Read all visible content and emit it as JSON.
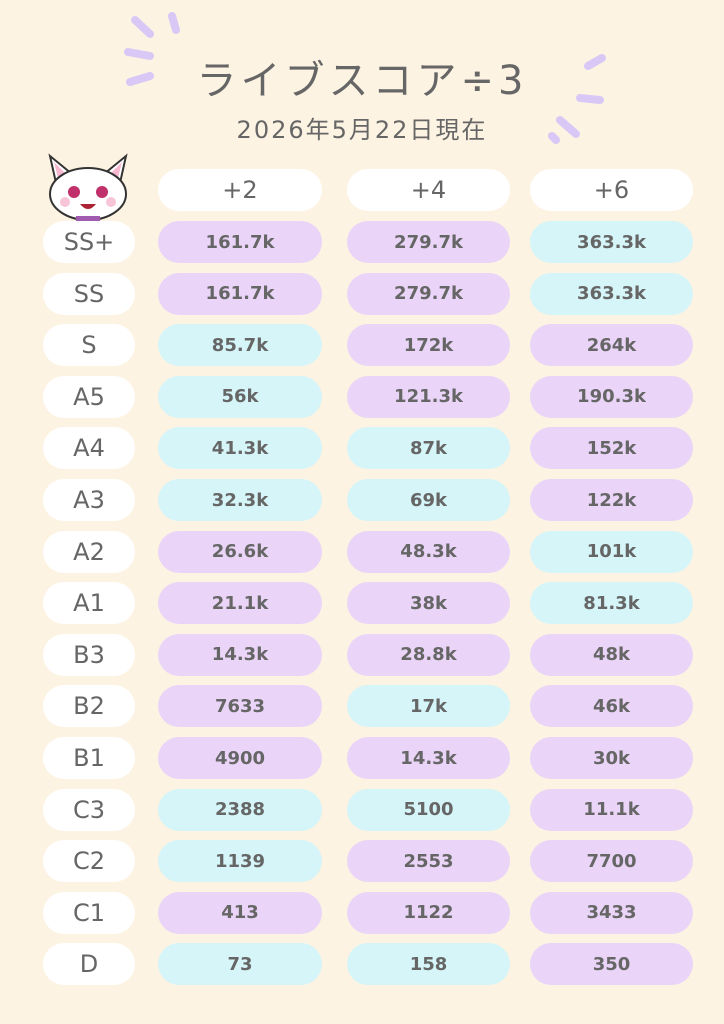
{
  "header": {
    "title": "ライブスコア÷3",
    "subtitle": "2026年5月22日現在"
  },
  "table": {
    "columns": [
      "+2",
      "+4",
      "+6"
    ],
    "rows": [
      {
        "label": "SS+",
        "cells": [
          "161.7k",
          "279.7k",
          "363.3k"
        ],
        "colors": [
          "#ead5f8",
          "#ead5f8",
          "#d5f5f8"
        ]
      },
      {
        "label": "SS",
        "cells": [
          "161.7k",
          "279.7k",
          "363.3k"
        ],
        "colors": [
          "#ead5f8",
          "#ead5f8",
          "#d5f5f8"
        ]
      },
      {
        "label": "S",
        "cells": [
          "85.7k",
          "172k",
          "264k"
        ],
        "colors": [
          "#d5f5f8",
          "#ead5f8",
          "#ead5f8"
        ]
      },
      {
        "label": "A5",
        "cells": [
          "56k",
          "121.3k",
          "190.3k"
        ],
        "colors": [
          "#d5f5f8",
          "#ead5f8",
          "#ead5f8"
        ]
      },
      {
        "label": "A4",
        "cells": [
          "41.3k",
          "87k",
          "152k"
        ],
        "colors": [
          "#d5f5f8",
          "#d5f5f8",
          "#ead5f8"
        ]
      },
      {
        "label": "A3",
        "cells": [
          "32.3k",
          "69k",
          "122k"
        ],
        "colors": [
          "#d5f5f8",
          "#d5f5f8",
          "#ead5f8"
        ]
      },
      {
        "label": "A2",
        "cells": [
          "26.6k",
          "48.3k",
          "101k"
        ],
        "colors": [
          "#ead5f8",
          "#ead5f8",
          "#d5f5f8"
        ]
      },
      {
        "label": "A1",
        "cells": [
          "21.1k",
          "38k",
          "81.3k"
        ],
        "colors": [
          "#ead5f8",
          "#ead5f8",
          "#d5f5f8"
        ]
      },
      {
        "label": "B3",
        "cells": [
          "14.3k",
          "28.8k",
          "48k"
        ],
        "colors": [
          "#ead5f8",
          "#ead5f8",
          "#ead5f8"
        ]
      },
      {
        "label": "B2",
        "cells": [
          "7633",
          "17k",
          "46k"
        ],
        "colors": [
          "#ead5f8",
          "#d5f5f8",
          "#ead5f8"
        ]
      },
      {
        "label": "B1",
        "cells": [
          "4900",
          "14.3k",
          "30k"
        ],
        "colors": [
          "#ead5f8",
          "#ead5f8",
          "#ead5f8"
        ]
      },
      {
        "label": "C3",
        "cells": [
          "2388",
          "5100",
          "11.1k"
        ],
        "colors": [
          "#d5f5f8",
          "#d5f5f8",
          "#ead5f8"
        ]
      },
      {
        "label": "C2",
        "cells": [
          "1139",
          "2553",
          "7700"
        ],
        "colors": [
          "#d5f5f8",
          "#ead5f8",
          "#ead5f8"
        ]
      },
      {
        "label": "C1",
        "cells": [
          "413",
          "1122",
          "3433"
        ],
        "colors": [
          "#ead5f8",
          "#ead5f8",
          "#ead5f8"
        ]
      },
      {
        "label": "D",
        "cells": [
          "73",
          "158",
          "350"
        ],
        "colors": [
          "#d5f5f8",
          "#d5f5f8",
          "#ead5f8"
        ]
      }
    ]
  }
}
